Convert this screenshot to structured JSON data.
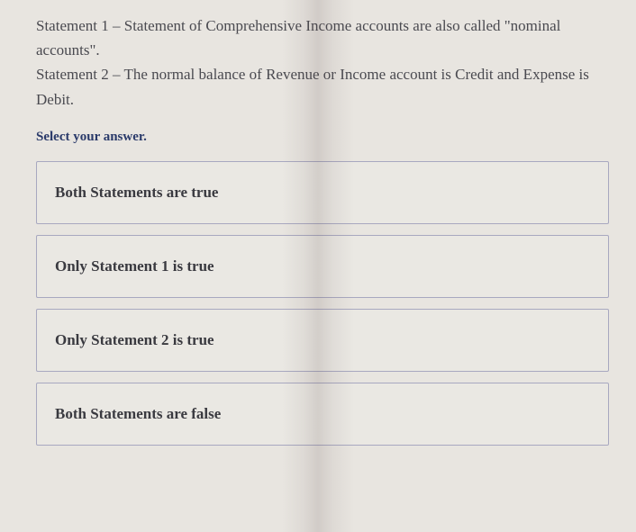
{
  "question": {
    "statement1_label": "Statement 1 – ",
    "statement1_text": "Statement of Comprehensive Income accounts are also called \"nominal accounts\".",
    "statement2_label": "Statement 2 – ",
    "statement2_text": "The normal balance of Revenue or Income account is Credit and Expense is Debit."
  },
  "prompt": "Select your answer.",
  "options": [
    {
      "label": "Both Statements are true"
    },
    {
      "label": "Only Statement 1 is true"
    },
    {
      "label": "Only Statement 2 is true"
    },
    {
      "label": "Both Statements are false"
    }
  ],
  "styling": {
    "background_color": "#e8e5e0",
    "option_border_color": "#a8a8c0",
    "option_background": "#eae8e3",
    "text_color": "#4a4a50",
    "prompt_color": "#2a3a6a",
    "font_family": "Georgia, serif",
    "question_fontsize": 17,
    "prompt_fontsize": 15,
    "option_fontsize": 17
  }
}
